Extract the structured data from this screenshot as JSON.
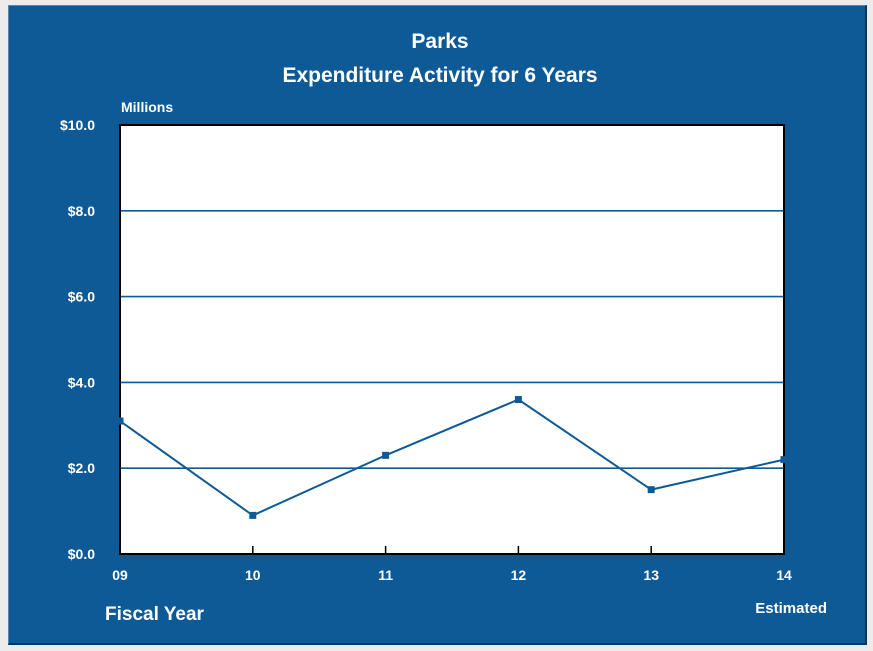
{
  "chart_data": {
    "type": "line",
    "title": "Parks",
    "subtitle": "Expenditure Activity for 6 Years",
    "ylabel": "Millions",
    "xlabel": "Fiscal Year",
    "x_note": "Estimated",
    "categories": [
      "09",
      "10",
      "11",
      "12",
      "13",
      "14"
    ],
    "series": [
      {
        "values": [
          3.1,
          0.9,
          2.3,
          3.6,
          1.5,
          2.2
        ]
      }
    ],
    "ylim": [
      0,
      10
    ],
    "yticks": [
      {
        "value": 0,
        "label": "$0.0"
      },
      {
        "value": 2,
        "label": "$2.0"
      },
      {
        "value": 4,
        "label": "$4.0"
      },
      {
        "value": 6,
        "label": "$6.0"
      },
      {
        "value": 8,
        "label": "$8.0"
      },
      {
        "value": 10,
        "label": "$10.0"
      }
    ],
    "grid": true,
    "colors": {
      "background": "#0e5a96",
      "plot_area": "#ffffff",
      "line": "#0e5a96",
      "grid": "#0e5a96",
      "text": "#ffffff"
    }
  }
}
